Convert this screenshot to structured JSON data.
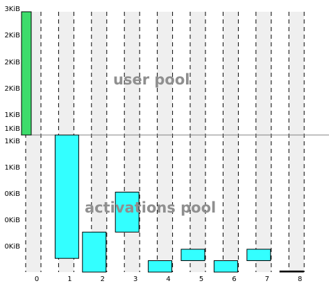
{
  "chart_data": {
    "type": "bar",
    "categories": [
      "0",
      "1",
      "2",
      "3",
      "4",
      "5",
      "6",
      "7",
      "8"
    ],
    "colors": {
      "user_bar": "#3ddc6b",
      "activation_bar": "#33ffff",
      "column_bg": "#efefef",
      "grid": "#000000",
      "divider": "#808080",
      "pool_label": "#8f8f8f"
    },
    "panels": [
      {
        "name": "user pool",
        "label": "user pool",
        "y_ticks": [
          "3KiB",
          "2KiB",
          "2KiB",
          "2KiB",
          "1KiB",
          "1KiB"
        ],
        "ylim": [
          0,
          3
        ],
        "bars": [
          {
            "x": 0,
            "start": 0,
            "end": 3
          }
        ]
      },
      {
        "name": "activations pool",
        "label": "activations pool",
        "y_ticks": [
          "1KiB",
          "1KiB",
          "0KiB",
          "0KiB",
          "0KiB"
        ],
        "ylim": [
          0,
          1.2
        ],
        "bars": [
          {
            "x": 1,
            "start": 0.12,
            "end": 1.2
          },
          {
            "x": 2,
            "start": 0,
            "end": 0.35
          },
          {
            "x": 3,
            "start": 0.35,
            "end": 0.7
          },
          {
            "x": 4,
            "start": 0,
            "end": 0.1
          },
          {
            "x": 5,
            "start": 0.1,
            "end": 0.2
          },
          {
            "x": 6,
            "start": 0,
            "end": 0.1
          },
          {
            "x": 7,
            "start": 0.1,
            "end": 0.2
          },
          {
            "x": 8,
            "start": 0,
            "end": 0.01
          }
        ]
      }
    ]
  }
}
